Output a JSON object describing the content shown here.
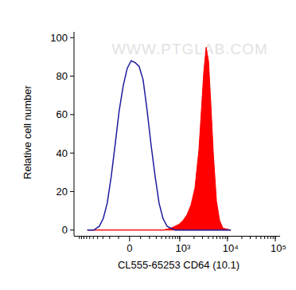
{
  "chart_data": {
    "type": "line",
    "x_label": "CL555-65253 CD64 (10.1)",
    "y_label": "Relative cell number",
    "annotations": [
      "WWW.PTGLAB.COM"
    ],
    "log": "x",
    "grid": false,
    "xlim": [
      -1300,
      126000
    ],
    "xticks": [
      0,
      {
        "value": 1000,
        "label": "10³"
      },
      {
        "value": 10000,
        "label": "10⁴"
      },
      {
        "value": 100000,
        "label": "10⁵"
      }
    ],
    "ylim": [
      -3,
      103
    ],
    "yticks": [
      0,
      20,
      40,
      60,
      80,
      100
    ],
    "x": [
      -676,
      -490,
      -365,
      -294,
      -233,
      -180,
      -134,
      -94,
      -56,
      -21,
      14,
      49,
      86,
      126,
      171,
      222,
      281,
      350,
      432,
      531,
      648,
      792,
      963,
      1172,
      1422,
      1724,
      2090,
      2533,
      2844,
      3193,
      3582,
      4021,
      4513,
      5063,
      5904,
      6876,
      8028,
      11772
    ],
    "series": [
      {
        "type": "line",
        "color": "#1c1c9e",
        "values": [
          0,
          0,
          2,
          6,
          14,
          28,
          45,
          62,
          75,
          84,
          88,
          87,
          85,
          78,
          62,
          44,
          28,
          14,
          6,
          2,
          1,
          0,
          0,
          0,
          0,
          0,
          0,
          0,
          0,
          0,
          0,
          0,
          0,
          0,
          0,
          0,
          0,
          0
        ]
      },
      {
        "type": "area",
        "color": "#ff0000",
        "values": [
          0,
          0,
          0,
          0,
          0,
          0,
          0,
          0,
          0,
          0,
          0,
          0,
          0,
          0,
          0,
          0,
          0,
          0,
          0,
          0.5,
          1,
          2,
          3,
          5,
          8,
          13,
          22,
          42,
          62,
          82,
          95,
          88,
          65,
          40,
          15,
          5,
          1,
          0
        ]
      }
    ]
  }
}
